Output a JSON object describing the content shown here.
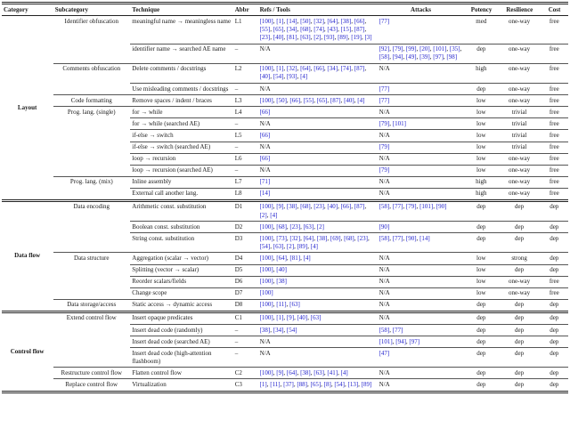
{
  "meta": {
    "link_color": "#2323cd",
    "na_label": "N/A"
  },
  "header": {
    "columns": [
      "Category",
      "Subcategory",
      "Technique",
      "Abbr",
      "Refs / Tools",
      "Attacks",
      "Potency",
      "Resilience",
      "Cost"
    ]
  },
  "groups": [
    {
      "category": "Layout",
      "subgroups": [
        {
          "subcategory": "Identifier obfuscation",
          "rows": [
            {
              "technique": "meaningful name → meaningless name",
              "abbr": "L1",
              "refs": [
                "100",
                "1",
                "14",
                "50",
                "32",
                "64",
                "38",
                "66",
                "55",
                "65",
                "34",
                "68",
                "74",
                "43",
                "15",
                "87",
                "23",
                "40",
                "81",
                "63",
                "2",
                "93",
                "89",
                "19",
                "3"
              ],
              "attacks": [
                "77"
              ],
              "potency": "med",
              "resilience": "one-way",
              "cost": "free"
            },
            {
              "technique": "identifier name → searched AE name",
              "abbr": "–",
              "refs": "N/A",
              "attacks": [
                "92",
                "79",
                "99",
                "20",
                "101",
                "35",
                "58",
                "94",
                "49",
                "39",
                "97",
                "98"
              ],
              "potency": "dep",
              "resilience": "one-way",
              "cost": "free"
            }
          ]
        },
        {
          "subcategory": "Comments obfuscation",
          "rows": [
            {
              "technique": "Delete comments / docstrings",
              "abbr": "L2",
              "refs": [
                "100",
                "1",
                "32",
                "64",
                "66",
                "34",
                "74",
                "87",
                "40",
                "54",
                "93",
                "4"
              ],
              "attacks": "N/A",
              "potency": "high",
              "resilience": "one-way",
              "cost": "free"
            },
            {
              "technique": "Use misleading comments / docstrings",
              "abbr": "–",
              "refs": "N/A",
              "attacks": [
                "77"
              ],
              "potency": "dep",
              "resilience": "one-way",
              "cost": "free"
            }
          ]
        },
        {
          "subcategory": "Code formatting",
          "rows": [
            {
              "technique": "Remove spaces / indent / braces",
              "abbr": "L3",
              "refs": [
                "100",
                "50",
                "66",
                "55",
                "65",
                "87",
                "40",
                "4"
              ],
              "attacks": [
                "77"
              ],
              "potency": "low",
              "resilience": "one-way",
              "cost": "free"
            }
          ]
        },
        {
          "subcategory": "Prog. lang. (single)",
          "rows": [
            {
              "technique": "for → while",
              "abbr": "L4",
              "refs": [
                "66"
              ],
              "attacks": "N/A",
              "potency": "low",
              "resilience": "trivial",
              "cost": "free"
            },
            {
              "technique": "for → while (searched AE)",
              "abbr": "–",
              "refs": "N/A",
              "attacks": [
                "79",
                "101"
              ],
              "potency": "low",
              "resilience": "trivial",
              "cost": "free"
            },
            {
              "technique": "if-else → switch",
              "abbr": "L5",
              "refs": [
                "66"
              ],
              "attacks": "N/A",
              "potency": "low",
              "resilience": "trivial",
              "cost": "free"
            },
            {
              "technique": "if-else → switch (searched AE)",
              "abbr": "–",
              "refs": "N/A",
              "attacks": [
                "79"
              ],
              "potency": "low",
              "resilience": "trivial",
              "cost": "free"
            },
            {
              "technique": "loop → recursion",
              "abbr": "L6",
              "refs": [
                "66"
              ],
              "attacks": "N/A",
              "potency": "low",
              "resilience": "one-way",
              "cost": "free"
            },
            {
              "technique": "loop → recursion (searched AE)",
              "abbr": "–",
              "refs": "N/A",
              "attacks": [
                "79"
              ],
              "potency": "low",
              "resilience": "one-way",
              "cost": "free"
            }
          ]
        },
        {
          "subcategory": "Prog. lang. (mix)",
          "rows": [
            {
              "technique": "Inline assembly",
              "abbr": "L7",
              "refs": [
                "71"
              ],
              "attacks": "N/A",
              "potency": "high",
              "resilience": "one-way",
              "cost": "free"
            },
            {
              "technique": "External call another lang.",
              "abbr": "L8",
              "refs": [
                "14"
              ],
              "attacks": "N/A",
              "potency": "high",
              "resilience": "one-way",
              "cost": "free"
            }
          ]
        }
      ]
    },
    {
      "category": "Data flow",
      "subgroups": [
        {
          "subcategory": "Data encoding",
          "rows": [
            {
              "technique": "Arithmetic const. substitution",
              "abbr": "D1",
              "refs": [
                "100",
                "9",
                "38",
                "68",
                "23",
                "40",
                "66",
                "87",
                "2",
                "4"
              ],
              "attacks": [
                "58",
                "77",
                "79",
                "101",
                "90"
              ],
              "potency": "dep",
              "resilience": "dep",
              "cost": "dep"
            },
            {
              "technique": "Boolean const. substitution",
              "abbr": "D2",
              "refs": [
                "100",
                "68",
                "23",
                "63",
                "2"
              ],
              "attacks": [
                "90"
              ],
              "potency": "dep",
              "resilience": "dep",
              "cost": "dep"
            },
            {
              "technique": "String const. substitution",
              "abbr": "D3",
              "refs": [
                "100",
                "73",
                "32",
                "64",
                "38",
                "69",
                "68",
                "23",
                "54",
                "63",
                "2",
                "89",
                "4"
              ],
              "attacks": [
                "58",
                "77",
                "90",
                "14"
              ],
              "potency": "dep",
              "resilience": "dep",
              "cost": "dep"
            }
          ]
        },
        {
          "subcategory": "Data structure",
          "rows": [
            {
              "technique": "Aggregation (scalar → vector)",
              "abbr": "D4",
              "refs": [
                "100",
                "64",
                "81",
                "4"
              ],
              "attacks": "N/A",
              "potency": "low",
              "resilience": "strong",
              "cost": "dep"
            },
            {
              "technique": "Splitting (vector → scalar)",
              "abbr": "D5",
              "refs": [
                "100",
                "40"
              ],
              "attacks": "N/A",
              "potency": "low",
              "resilience": "dep",
              "cost": "dep"
            },
            {
              "technique": "Reorder scalars/fields",
              "abbr": "D6",
              "refs": [
                "100",
                "38"
              ],
              "attacks": "N/A",
              "potency": "low",
              "resilience": "one-way",
              "cost": "free"
            },
            {
              "technique": "Change scope",
              "abbr": "D7",
              "refs": [
                "100"
              ],
              "attacks": "N/A",
              "potency": "low",
              "resilience": "one-way",
              "cost": "free"
            }
          ]
        },
        {
          "subcategory": "Data storage/access",
          "rows": [
            {
              "technique": "Static access → dynamic access",
              "abbr": "D8",
              "refs": [
                "100",
                "11",
                "63"
              ],
              "attacks": "N/A",
              "potency": "dep",
              "resilience": "dep",
              "cost": "dep"
            }
          ]
        }
      ]
    },
    {
      "category": "Control flow",
      "subgroups": [
        {
          "subcategory": "Extend control flow",
          "rows": [
            {
              "technique": "Insert opaque predicates",
              "abbr": "C1",
              "refs": [
                "100",
                "1",
                "9",
                "40",
                "63"
              ],
              "attacks": "N/A",
              "potency": "dep",
              "resilience": "dep",
              "cost": "dep"
            },
            {
              "technique": "Insert dead code (randomly)",
              "abbr": "–",
              "refs": [
                "38",
                "34",
                "54"
              ],
              "attacks": [
                "58",
                "77"
              ],
              "potency": "dep",
              "resilience": "dep",
              "cost": "dep"
            },
            {
              "technique": "Insert dead code (searched AE)",
              "abbr": "–",
              "refs": "N/A",
              "attacks": [
                "101",
                "94",
                "97"
              ],
              "potency": "dep",
              "resilience": "dep",
              "cost": "dep"
            },
            {
              "technique": "Insert dead code (high-attention flashboom)",
              "abbr": "–",
              "refs": "N/A",
              "attacks": [
                "47"
              ],
              "potency": "dep",
              "resilience": "dep",
              "cost": "dep"
            }
          ]
        },
        {
          "subcategory": "Restructure control flow",
          "rows": [
            {
              "technique": "Flatten control flow",
              "abbr": "C2",
              "refs": [
                "100",
                "9",
                "64",
                "38",
                "63",
                "41",
                "4"
              ],
              "attacks": "N/A",
              "potency": "dep",
              "resilience": "dep",
              "cost": "dep"
            }
          ]
        },
        {
          "subcategory": "Replace control flow",
          "rows": [
            {
              "technique": "Virtualization",
              "abbr": "C3",
              "refs": [
                "1",
                "11",
                "37",
                "88",
                "65",
                "8",
                "54",
                "13",
                "89"
              ],
              "attacks": "N/A",
              "potency": "dep",
              "resilience": "dep",
              "cost": "dep"
            }
          ]
        }
      ]
    }
  ]
}
